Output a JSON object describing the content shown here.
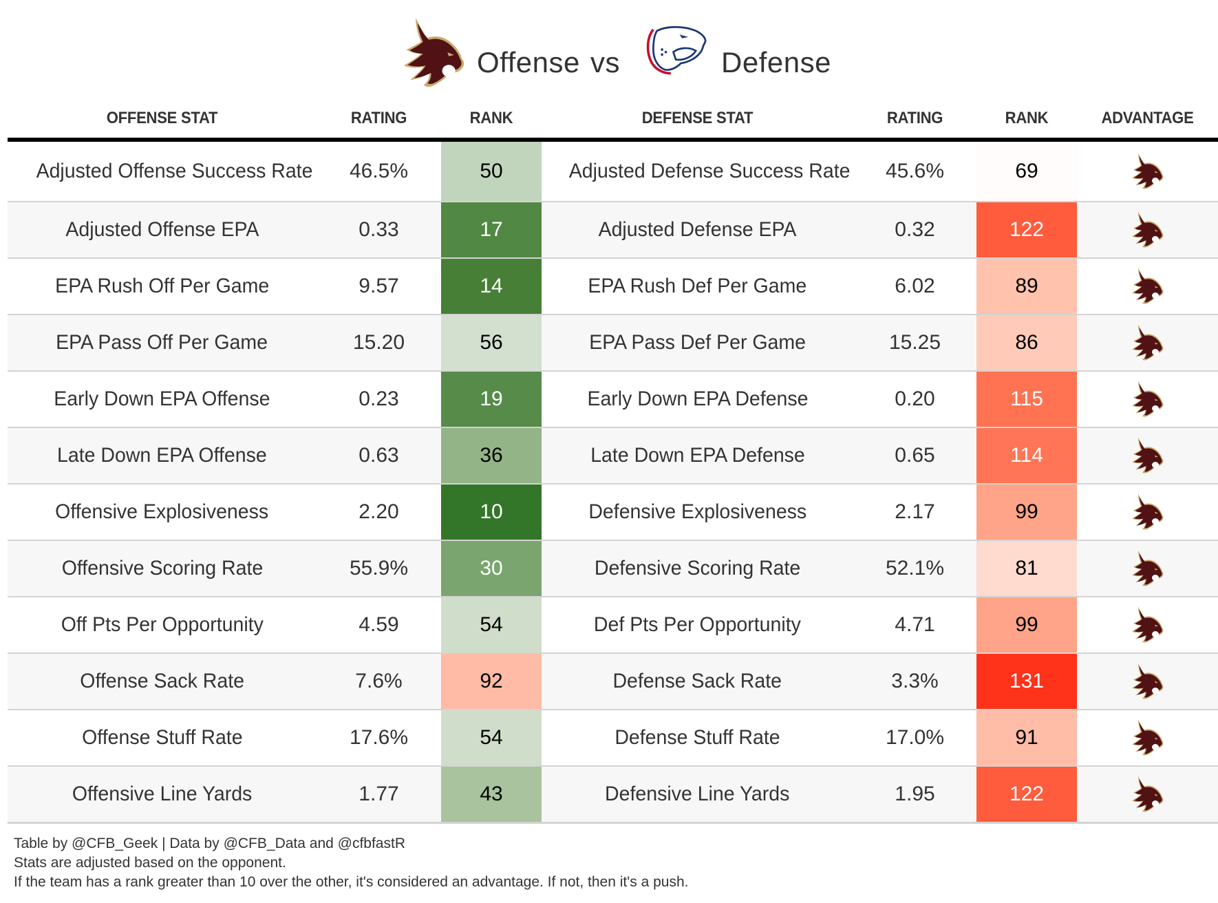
{
  "title": {
    "offense_label": "Offense",
    "vs_label": "vs",
    "defense_label": "Defense",
    "offense_logo": "texas-state-bobcat-logo",
    "defense_logo": "south-alabama-jaguar-logo"
  },
  "headers": {
    "offense_stat": "OFFENSE STAT",
    "offense_rating": "RATING",
    "offense_rank": "RANK",
    "defense_stat": "DEFENSE STAT",
    "defense_rating": "RATING",
    "defense_rank": "RANK",
    "advantage": "ADVANTAGE"
  },
  "colors": {
    "bobcat_maroon": "#501214",
    "bobcat_gold": "#c9a96e",
    "jaguar_navy": "#1d3776",
    "jaguar_red": "#c8102e",
    "row_alt": "#f7f7f7",
    "divider": "#d3d3d3"
  },
  "rows": [
    {
      "off_stat": "Adjusted Offense Success Rate",
      "off_rating": "46.5%",
      "off_rank": "50",
      "off_rank_bg": "#c0d5bb",
      "off_rank_fg": "#000000",
      "def_stat": "Adjusted Defense Success Rate",
      "def_rating": "45.6%",
      "def_rank": "69",
      "def_rank_bg": "#fffcfb",
      "def_rank_fg": "#000000",
      "advantage": "offense"
    },
    {
      "off_stat": "Adjusted Offense EPA",
      "off_rating": "0.33",
      "off_rank": "17",
      "off_rank_bg": "#518843",
      "off_rank_fg": "#ffffff",
      "def_stat": "Adjusted Defense EPA",
      "def_rating": "0.32",
      "def_rank": "122",
      "def_rank_bg": "#fe5c3c",
      "def_rank_fg": "#ffffff",
      "advantage": "offense"
    },
    {
      "off_stat": "EPA Rush Off Per Game",
      "off_rating": "9.57",
      "off_rank": "14",
      "off_rank_bg": "#467f35",
      "off_rank_fg": "#ffffff",
      "def_stat": "EPA Rush Def Per Game",
      "def_rating": "6.02",
      "def_rank": "89",
      "def_rank_bg": "#ffc2ad",
      "def_rank_fg": "#000000",
      "advantage": "offense"
    },
    {
      "off_stat": "EPA Pass Off Per Game",
      "off_rating": "15.20",
      "off_rank": "56",
      "off_rank_bg": "#d3e0cf",
      "off_rank_fg": "#000000",
      "def_stat": "EPA Pass Def Per Game",
      "def_rating": "15.25",
      "def_rank": "86",
      "def_rank_bg": "#ffcbb8",
      "def_rank_fg": "#000000",
      "advantage": "offense"
    },
    {
      "off_stat": "Early Down EPA Offense",
      "off_rating": "0.23",
      "off_rank": "19",
      "off_rank_bg": "#568b49",
      "off_rank_fg": "#ffffff",
      "def_stat": "Early Down EPA Defense",
      "def_rating": "0.20",
      "def_rank": "115",
      "def_rank_bg": "#ff7352",
      "def_rank_fg": "#ffffff",
      "advantage": "offense"
    },
    {
      "off_stat": "Late Down EPA Offense",
      "off_rating": "0.63",
      "off_rank": "36",
      "off_rank_bg": "#93b487",
      "off_rank_fg": "#000000",
      "def_stat": "Late Down EPA Defense",
      "def_rating": "0.65",
      "def_rank": "114",
      "def_rank_bg": "#ff7555",
      "def_rank_fg": "#ffffff",
      "advantage": "offense"
    },
    {
      "off_stat": "Offensive Explosiveness",
      "off_rating": "2.20",
      "off_rank": "10",
      "off_rank_bg": "#347629",
      "off_rank_fg": "#ffffff",
      "def_stat": "Defensive Explosiveness",
      "def_rating": "2.17",
      "def_rank": "99",
      "def_rank_bg": "#ffa488",
      "def_rank_fg": "#000000",
      "advantage": "offense"
    },
    {
      "off_stat": "Offensive Scoring Rate",
      "off_rating": "55.9%",
      "off_rank": "30",
      "off_rank_bg": "#7aa56e",
      "off_rank_fg": "#ffffff",
      "def_stat": "Defensive Scoring Rate",
      "def_rating": "52.1%",
      "def_rank": "81",
      "def_rank_bg": "#ffdace",
      "def_rank_fg": "#000000",
      "advantage": "offense"
    },
    {
      "off_stat": "Off Pts Per Opportunity",
      "off_rating": "4.59",
      "off_rank": "54",
      "off_rank_bg": "#cfddca",
      "off_rank_fg": "#000000",
      "def_stat": "Def Pts Per Opportunity",
      "def_rating": "4.71",
      "def_rank": "99",
      "def_rank_bg": "#ffa488",
      "def_rank_fg": "#000000",
      "advantage": "offense"
    },
    {
      "off_stat": "Offense Sack Rate",
      "off_rating": "7.6%",
      "off_rank": "92",
      "off_rank_bg": "#ffbba5",
      "off_rank_fg": "#000000",
      "def_stat": "Defense Sack Rate",
      "def_rating": "3.3%",
      "def_rank": "131",
      "def_rank_bg": "#ff321a",
      "def_rank_fg": "#ffffff",
      "advantage": "offense"
    },
    {
      "off_stat": "Offense Stuff Rate",
      "off_rating": "17.6%",
      "off_rank": "54",
      "off_rank_bg": "#cfddca",
      "off_rank_fg": "#000000",
      "def_stat": "Defense Stuff Rate",
      "def_rating": "17.0%",
      "def_rank": "91",
      "def_rank_bg": "#ffbca6",
      "def_rank_fg": "#000000",
      "advantage": "offense"
    },
    {
      "off_stat": "Offensive Line Yards",
      "off_rating": "1.77",
      "off_rank": "43",
      "off_rank_bg": "#a8c39e",
      "off_rank_fg": "#000000",
      "def_stat": "Defensive Line Yards",
      "def_rating": "1.95",
      "def_rank": "122",
      "def_rank_bg": "#fe5c3c",
      "def_rank_fg": "#ffffff",
      "advantage": "offense"
    }
  ],
  "footer": {
    "line1": "Table by @CFB_Geek | Data by @CFB_Data and @cfbfastR",
    "line2": "Stats are adjusted based on the opponent.",
    "line3": "If the team has a rank greater than 10 over the other, it's considered an advantage. If not, then it's a push."
  }
}
